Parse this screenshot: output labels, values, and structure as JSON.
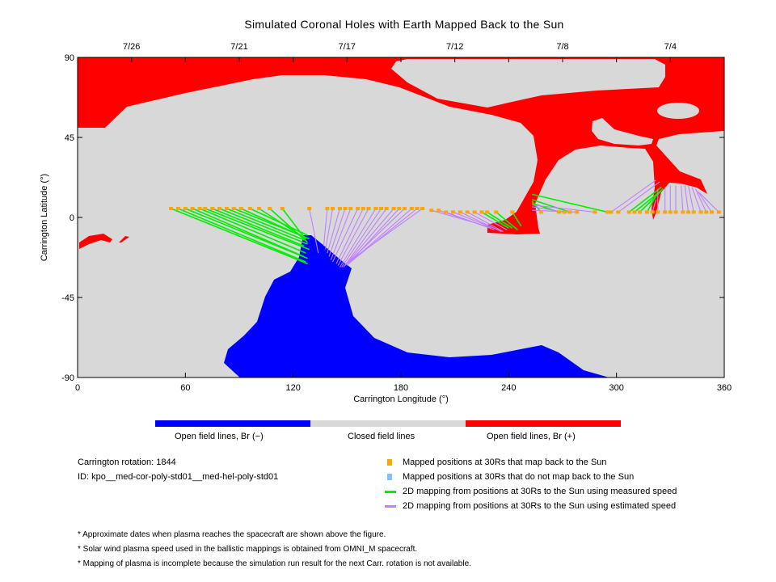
{
  "chart_data": {
    "type": "scatter",
    "title": "Simulated Coronal Holes with Earth Mapped Back to the Sun",
    "xlabel": "Carrington Longitude (°)",
    "ylabel": "Carrington Latitude (°)",
    "xlim": [
      0,
      360
    ],
    "ylim": [
      -90,
      90
    ],
    "xticks": [
      "0",
      "60",
      "120",
      "180",
      "240",
      "300",
      "360"
    ],
    "yticks": [
      "90",
      "45",
      "0",
      "-45",
      "-90"
    ],
    "top_axis": {
      "labels": [
        "7/26",
        "7/21",
        "7/17",
        "7/12",
        "7/8",
        "7/4"
      ],
      "longitudes": [
        30,
        90,
        150,
        210,
        270,
        330
      ]
    },
    "colorbar": [
      "Open field lines, Br (−)",
      "Closed field lines",
      "Open field lines, Br (+)"
    ],
    "colors": {
      "negative": "#0000ff",
      "closed": "#d8d8d8",
      "positive": "#ff0000",
      "mapped": "#ffa500",
      "unmapped": "#80c0ff",
      "measured": "#00ee00",
      "estimated": "#c080ff"
    },
    "mapping_note": "each entry: [lon at 30Rs, lat at 30Rs, footpoint lon, footpoint lat, speed m=measured e=estimated]",
    "mappings": [
      [
        52,
        5,
        128,
        -26,
        "m"
      ],
      [
        56,
        5,
        127,
        -25,
        "m"
      ],
      [
        60,
        5,
        128,
        -23,
        "m"
      ],
      [
        64,
        5,
        126,
        -22,
        "m"
      ],
      [
        68,
        5,
        127,
        -20,
        "m"
      ],
      [
        71,
        5,
        129,
        -18,
        "m"
      ],
      [
        75,
        5,
        126,
        -16,
        "m"
      ],
      [
        79,
        5,
        128,
        -15,
        "m"
      ],
      [
        83,
        5,
        127,
        -13,
        "m"
      ],
      [
        87,
        5,
        129,
        -12,
        "m"
      ],
      [
        91,
        5,
        126,
        -11,
        "m"
      ],
      [
        96,
        5,
        128,
        -10,
        "m"
      ],
      [
        101,
        5,
        127,
        -12,
        "m"
      ],
      [
        107,
        5,
        128,
        -14,
        "m"
      ],
      [
        114,
        5,
        126,
        -11,
        "m"
      ],
      [
        129,
        5,
        134,
        -20,
        "e"
      ],
      [
        139,
        5,
        137,
        -16,
        "e"
      ],
      [
        142,
        5,
        138,
        -18,
        "e"
      ],
      [
        146,
        5,
        139,
        -20,
        "e"
      ],
      [
        149,
        5,
        140,
        -22,
        "e"
      ],
      [
        152,
        5,
        141,
        -24,
        "e"
      ],
      [
        156,
        5,
        142,
        -25,
        "e"
      ],
      [
        159,
        5,
        144,
        -26,
        "e"
      ],
      [
        162,
        5,
        145,
        -27,
        "e"
      ],
      [
        166,
        5,
        146,
        -28,
        "e"
      ],
      [
        169,
        5,
        147,
        -28,
        "e"
      ],
      [
        172,
        5,
        148,
        -28,
        "e"
      ],
      [
        176,
        5,
        149,
        -27,
        "e"
      ],
      [
        179,
        5,
        150,
        -27,
        "e"
      ],
      [
        182,
        5,
        150,
        -26,
        "e"
      ],
      [
        186,
        5,
        151,
        -26,
        "e"
      ],
      [
        189,
        5,
        152,
        -25,
        "e"
      ],
      [
        192,
        5,
        152,
        -24,
        "e"
      ],
      [
        197,
        4,
        228,
        -5,
        "e"
      ],
      [
        201,
        4,
        230,
        -6,
        "e"
      ],
      [
        205,
        3,
        232,
        -7,
        "e"
      ],
      [
        209,
        3,
        234,
        -7,
        "e"
      ],
      [
        213,
        3,
        236,
        -8,
        "e"
      ],
      [
        217,
        3,
        237,
        -8,
        "e"
      ],
      [
        221,
        3,
        239,
        -7,
        "e"
      ],
      [
        225,
        3,
        240,
        -6,
        "m"
      ],
      [
        228,
        3,
        242,
        -6,
        "m"
      ],
      [
        233,
        3,
        245,
        -7,
        "m"
      ],
      [
        242,
        3,
        247,
        -5,
        "m"
      ],
      [
        258,
        3,
        253,
        9,
        "m"
      ],
      [
        268,
        3,
        253,
        8,
        "m"
      ],
      [
        271,
        3,
        253,
        6,
        "e"
      ],
      [
        274,
        3,
        253,
        10,
        "m"
      ],
      [
        278,
        3,
        253,
        4,
        "e"
      ],
      [
        288,
        3,
        253,
        7,
        "e"
      ],
      [
        295,
        3,
        253,
        13,
        "m"
      ],
      [
        297,
        3,
        322,
        21,
        "e"
      ],
      [
        301,
        3,
        324,
        20,
        "e"
      ],
      [
        307,
        3,
        325,
        17,
        "m"
      ],
      [
        310,
        3,
        326,
        16,
        "m"
      ],
      [
        313,
        3,
        325,
        15,
        "m"
      ],
      [
        317,
        3,
        323,
        14,
        "m"
      ],
      [
        320,
        3,
        322,
        10,
        "e"
      ],
      [
        323,
        3,
        323,
        16,
        "e"
      ],
      [
        327,
        3,
        327,
        17,
        "e"
      ],
      [
        330,
        3,
        330,
        18,
        "e"
      ],
      [
        333,
        3,
        333,
        18,
        "e"
      ],
      [
        337,
        3,
        336,
        18,
        "e"
      ],
      [
        340,
        3,
        338,
        18,
        "e"
      ],
      [
        343,
        3,
        340,
        18,
        "e"
      ],
      [
        347,
        3,
        342,
        17,
        "e"
      ],
      [
        350,
        3,
        344,
        16,
        "e"
      ],
      [
        353,
        3,
        345,
        15,
        "e"
      ],
      [
        357,
        3,
        346,
        14,
        "e"
      ]
    ]
  },
  "info": {
    "rotation": "Carrington rotation: 1844",
    "id": "ID: kpo__med-cor-poly-std01__med-hel-poly-std01"
  },
  "legend": [
    "Mapped positions at 30Rs that map back to the Sun",
    "Mapped positions at 30Rs that do not map back to the Sun",
    "2D mapping from positions at 30Rs to the Sun using measured speed",
    "2D mapping from positions at 30Rs to the Sun using estimated speed"
  ],
  "notes": [
    "* Approximate dates when plasma reaches the spacecraft are shown above the figure.",
    "* Solar wind plasma speed used in the ballistic mappings is obtained from OMNI_M spacecraft.",
    "* Mapping of plasma is incomplete because the simulation run result for the next Carr. rotation is not available."
  ]
}
